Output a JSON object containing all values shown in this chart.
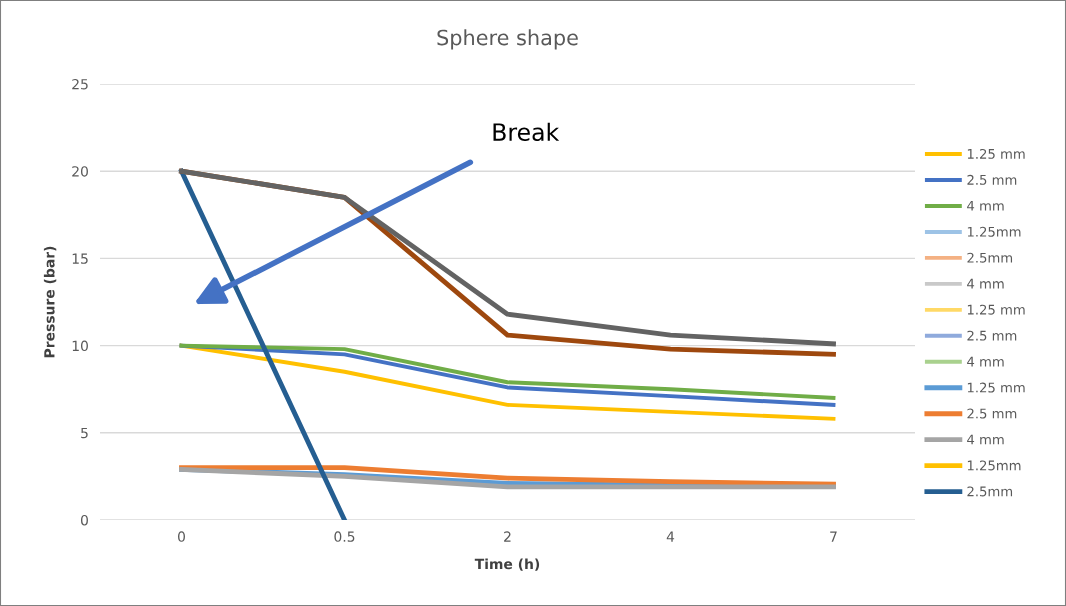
{
  "chart_data": {
    "type": "line",
    "title": "Sphere shape",
    "xlabel": "Time (h)",
    "ylabel": "Pressure (bar)",
    "categories": [
      "0",
      "0.5",
      "2",
      "4",
      "7"
    ],
    "ylim": [
      0,
      25
    ],
    "yticks": [
      0,
      5,
      10,
      15,
      20,
      25
    ],
    "grid": "y",
    "legend": "right",
    "marker": "none",
    "line_style": "solid",
    "annotations": [
      "Break"
    ],
    "series": [
      {
        "name": "1.25 mm",
        "color": "#ffc000",
        "values": [
          10,
          8.5,
          6.6,
          6.2,
          5.8
        ]
      },
      {
        "name": "2.5 mm",
        "color": "#4472c4",
        "values": [
          10,
          9.5,
          7.6,
          7.1,
          6.6
        ]
      },
      {
        "name": "4 mm",
        "color": "#70ad47",
        "values": [
          10,
          9.8,
          7.9,
          7.5,
          7.0
        ]
      },
      {
        "name": "1.25mm",
        "color": "#9dc3e6",
        "values": [
          null,
          null,
          null,
          null,
          null
        ]
      },
      {
        "name": "2.5mm",
        "color": "#f4b183",
        "values": [
          null,
          null,
          null,
          null,
          null
        ]
      },
      {
        "name": "4 mm",
        "color": "#c9c9c9",
        "values": [
          null,
          null,
          null,
          null,
          null
        ]
      },
      {
        "name": "1.25 mm",
        "color": "#ffd966",
        "values": [
          null,
          null,
          null,
          null,
          null
        ]
      },
      {
        "name": "2.5 mm",
        "color": "#8faadc",
        "values": [
          null,
          null,
          null,
          null,
          null
        ]
      },
      {
        "name": "4 mm",
        "color": "#a9d18e",
        "values": [
          null,
          null,
          null,
          null,
          null
        ]
      },
      {
        "name": "1.25 mm",
        "color": "#5b9bd5",
        "values": [
          2.9,
          2.6,
          2.1,
          2.0,
          1.95
        ]
      },
      {
        "name": "2.5 mm",
        "color": "#ed7d31",
        "values": [
          3.0,
          3.0,
          2.4,
          2.2,
          2.05
        ]
      },
      {
        "name": "4 mm",
        "color": "#a5a5a5",
        "values": [
          2.9,
          2.5,
          1.9,
          1.9,
          1.9
        ]
      },
      {
        "name": "1.25mm",
        "color": "#ffc000",
        "values": [
          null,
          null,
          null,
          null,
          null
        ]
      },
      {
        "name": "2.5mm",
        "color": "#255e91",
        "values": [
          20,
          0,
          null,
          null,
          null
        ]
      },
      {
        "color": "#9e480e",
        "values": [
          20,
          18.5,
          10.6,
          9.8,
          9.5
        ]
      },
      {
        "color": "#636363",
        "values": [
          20,
          18.5,
          11.8,
          10.6,
          10.1
        ]
      }
    ]
  }
}
